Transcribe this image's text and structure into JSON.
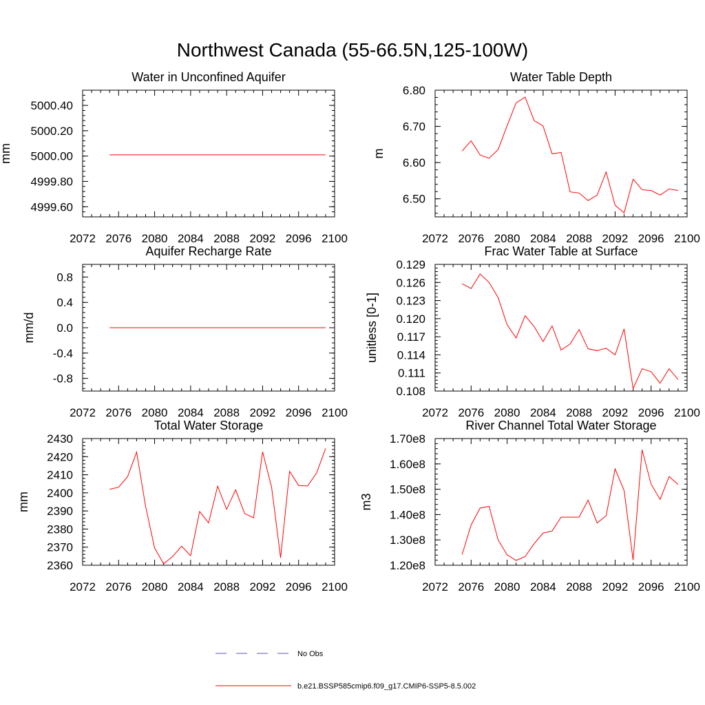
{
  "figure": {
    "title": "Northwest Canada (55-66.5N,125-100W)"
  },
  "colors": {
    "model": "#ff0000",
    "obs": "#5555aa",
    "axes": "#000000"
  },
  "legend": {
    "entries": [
      {
        "label": "No Obs",
        "style": "dashed",
        "color": "#5555aa"
      },
      {
        "label": "b.e21.BSSP585cmip6.f09_g17.CMIP6-SSP5-8.5.002",
        "style": "solid",
        "color": "#ff0000"
      }
    ]
  },
  "chart_data": [
    {
      "type": "line",
      "title": "Water in Unconfined Aquifer",
      "ylabel": "mm",
      "xlim": [
        2072,
        2100
      ],
      "x_ticks": [
        "2072",
        "2076",
        "2080",
        "2084",
        "2088",
        "2092",
        "2096",
        "2100"
      ],
      "ylim": [
        4999.52,
        5000.52
      ],
      "y_ticks": [
        "4999.60",
        "4999.80",
        "5000.00",
        "5000.20",
        "5000.40"
      ],
      "series": [
        {
          "x": [
            2075,
            2076,
            2077,
            2078,
            2079,
            2080,
            2081,
            2082,
            2083,
            2084,
            2085,
            2086,
            2087,
            2088,
            2089,
            2090,
            2091,
            2092,
            2093,
            2094,
            2095,
            2096,
            2097,
            2098,
            2099
          ],
          "y": [
            5000.01,
            5000.01,
            5000.01,
            5000.01,
            5000.01,
            5000.01,
            5000.01,
            5000.01,
            5000.01,
            5000.01,
            5000.01,
            5000.01,
            5000.01,
            5000.01,
            5000.01,
            5000.01,
            5000.01,
            5000.01,
            5000.01,
            5000.01,
            5000.01,
            5000.01,
            5000.01,
            5000.01,
            5000.01
          ]
        }
      ]
    },
    {
      "type": "line",
      "title": "Water Table Depth",
      "ylabel": "m",
      "xlim": [
        2072,
        2100
      ],
      "x_ticks": [
        "2072",
        "2076",
        "2080",
        "2084",
        "2088",
        "2092",
        "2096",
        "2100"
      ],
      "ylim": [
        6.45,
        6.8
      ],
      "y_ticks": [
        "6.50",
        "6.60",
        "6.70",
        "6.80"
      ],
      "series": [
        {
          "x": [
            2075,
            2076,
            2077,
            2078,
            2079,
            2080,
            2081,
            2082,
            2083,
            2084,
            2085,
            2086,
            2087,
            2088,
            2089,
            2090,
            2091,
            2092,
            2093,
            2094,
            2095,
            2096,
            2097,
            2098,
            2099
          ],
          "y": [
            6.632,
            6.66,
            6.621,
            6.612,
            6.636,
            6.702,
            6.765,
            6.781,
            6.716,
            6.701,
            6.624,
            6.628,
            6.519,
            6.516,
            6.495,
            6.51,
            6.574,
            6.482,
            6.461,
            6.554,
            6.525,
            6.523,
            6.51,
            6.527,
            6.523
          ]
        }
      ]
    },
    {
      "type": "line",
      "title": "Aquifer Recharge Rate",
      "ylabel": "mm/d",
      "xlim": [
        2072,
        2100
      ],
      "x_ticks": [
        "2072",
        "2076",
        "2080",
        "2084",
        "2088",
        "2092",
        "2096",
        "2100"
      ],
      "ylim": [
        -1.0,
        1.0
      ],
      "y_ticks": [
        "-0.8",
        "-0.4",
        "0.0",
        "0.4",
        "0.8"
      ],
      "series": [
        {
          "x": [
            2075,
            2076,
            2077,
            2078,
            2079,
            2080,
            2081,
            2082,
            2083,
            2084,
            2085,
            2086,
            2087,
            2088,
            2089,
            2090,
            2091,
            2092,
            2093,
            2094,
            2095,
            2096,
            2097,
            2098,
            2099
          ],
          "y": [
            0,
            0,
            0,
            0,
            0,
            0,
            0,
            0,
            0,
            0,
            0,
            0,
            0,
            0,
            0,
            0,
            0,
            0,
            0,
            0,
            0,
            0,
            0,
            0,
            0
          ]
        }
      ]
    },
    {
      "type": "line",
      "title": "Frac Water Table at Surface",
      "ylabel": "unitless [0-1]",
      "xlim": [
        2072,
        2100
      ],
      "x_ticks": [
        "2072",
        "2076",
        "2080",
        "2084",
        "2088",
        "2092",
        "2096",
        "2100"
      ],
      "ylim": [
        0.108,
        0.129
      ],
      "y_ticks": [
        "0.108",
        "0.111",
        "0.114",
        "0.117",
        "0.120",
        "0.123",
        "0.126",
        "0.129"
      ],
      "series": [
        {
          "x": [
            2075,
            2076,
            2077,
            2078,
            2079,
            2080,
            2081,
            2082,
            2083,
            2084,
            2085,
            2086,
            2087,
            2088,
            2089,
            2090,
            2091,
            2092,
            2093,
            2094,
            2095,
            2096,
            2097,
            2098,
            2099
          ],
          "y": [
            0.1258,
            0.125,
            0.1274,
            0.126,
            0.1235,
            0.119,
            0.1168,
            0.1205,
            0.1187,
            0.1162,
            0.1188,
            0.1148,
            0.1158,
            0.1182,
            0.115,
            0.1147,
            0.1151,
            0.114,
            0.1183,
            0.1084,
            0.1117,
            0.1112,
            0.1093,
            0.1117,
            0.1099
          ]
        }
      ]
    },
    {
      "type": "line",
      "title": "Total Water Storage",
      "ylabel": "mm",
      "xlim": [
        2072,
        2100
      ],
      "x_ticks": [
        "2072",
        "2076",
        "2080",
        "2084",
        "2088",
        "2092",
        "2096",
        "2100"
      ],
      "ylim": [
        2360,
        2430
      ],
      "y_ticks": [
        "2360",
        "2370",
        "2380",
        "2390",
        "2400",
        "2410",
        "2420",
        "2430"
      ],
      "series": [
        {
          "x": [
            2075,
            2076,
            2077,
            2078,
            2079,
            2080,
            2081,
            2082,
            2083,
            2084,
            2085,
            2086,
            2087,
            2088,
            2089,
            2090,
            2091,
            2092,
            2093,
            2094,
            2095,
            2096,
            2097,
            2098,
            2099
          ],
          "y": [
            2402.0,
            2403.1,
            2409.0,
            2422.5,
            2392.5,
            2369.5,
            2360.8,
            2364.8,
            2370.5,
            2365.3,
            2389.7,
            2383.4,
            2403.7,
            2390.9,
            2401.7,
            2388.6,
            2386.2,
            2422.7,
            2403.1,
            2364.1,
            2411.9,
            2404.1,
            2403.8,
            2411.0,
            2424.5
          ]
        }
      ]
    },
    {
      "type": "line",
      "title": "River Channel Total Water Storage",
      "ylabel": "m3",
      "xlim": [
        2072,
        2100
      ],
      "x_ticks": [
        "2072",
        "2076",
        "2080",
        "2084",
        "2088",
        "2092",
        "2096",
        "2100"
      ],
      "ylim": [
        120000000,
        170000000
      ],
      "y_ticks": [
        "1.20e8",
        "1.30e8",
        "1.40e8",
        "1.50e8",
        "1.60e8",
        "1.70e8"
      ],
      "series": [
        {
          "x": [
            2075,
            2076,
            2077,
            2078,
            2079,
            2080,
            2081,
            2082,
            2083,
            2084,
            2085,
            2086,
            2087,
            2088,
            2089,
            2090,
            2091,
            2092,
            2093,
            2094,
            2095,
            2096,
            2097,
            2098,
            2099
          ],
          "y": [
            124200000,
            135900000,
            142600000,
            143200000,
            130000000,
            124100000,
            121900000,
            123400000,
            128500000,
            132700000,
            133500000,
            139000000,
            139000000,
            139000000,
            145700000,
            136700000,
            139500000,
            158000000,
            149500000,
            122000000,
            165600000,
            152000000,
            146000000,
            155000000,
            151900000
          ]
        }
      ]
    }
  ]
}
